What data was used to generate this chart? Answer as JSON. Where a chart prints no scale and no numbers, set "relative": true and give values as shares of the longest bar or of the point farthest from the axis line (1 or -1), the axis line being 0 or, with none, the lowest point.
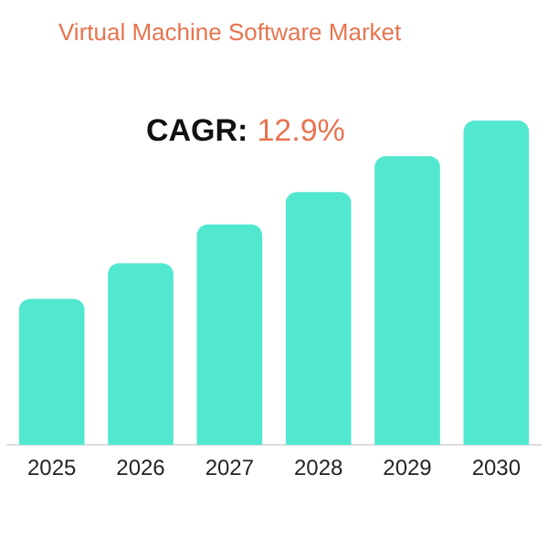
{
  "chart_data": {
    "type": "bar",
    "title": "Virtual Machine Software Market",
    "categories": [
      "2025",
      "2026",
      "2027",
      "2028",
      "2029",
      "2030"
    ],
    "values": [
      0.45,
      0.56,
      0.68,
      0.78,
      0.89,
      1
    ],
    "color": "#52e8d0",
    "relative": true,
    "grid": false,
    "legend": false,
    "annotations": [
      "CAGR:",
      "12.9%"
    ]
  }
}
